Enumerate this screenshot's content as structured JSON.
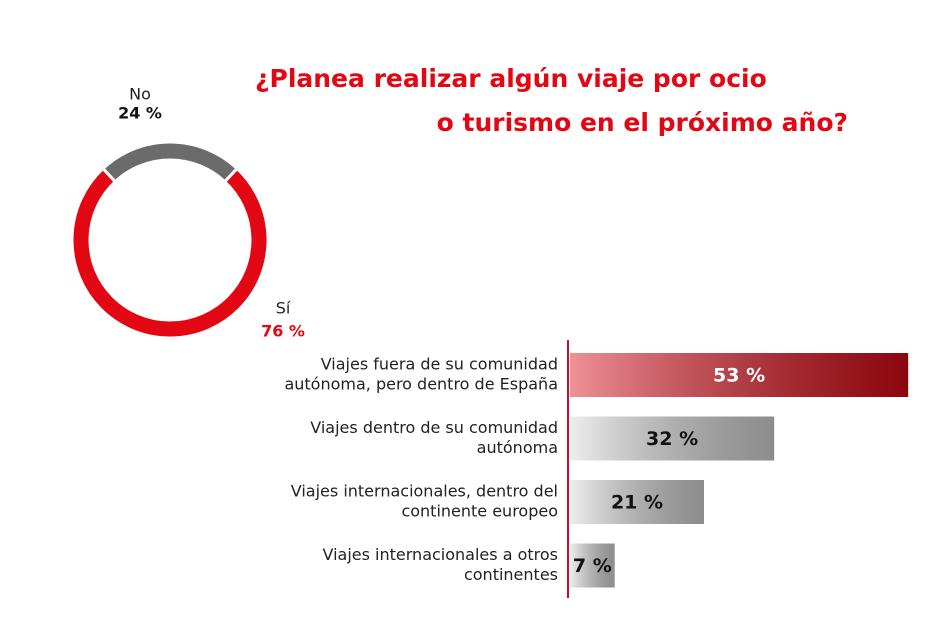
{
  "chart_data": [
    {
      "type": "donut",
      "title": [
        "¿Planea realizar algún viaje por ocio",
        "o turismo en el próximo año?"
      ],
      "categories": [
        "No",
        "Sí"
      ],
      "values": [
        24,
        76
      ],
      "value_labels": [
        "24 %",
        "76 %"
      ],
      "colors": [
        "#6b6b6b",
        "#e30613"
      ]
    },
    {
      "type": "hbar",
      "categories": [
        [
          "Viajes fuera de su comunidad",
          "autónoma, pero dentro de España"
        ],
        [
          "Viajes dentro de su comunidad",
          "autónoma"
        ],
        [
          "Viajes internacionales, dentro del",
          "continente europeo"
        ],
        [
          "Viajes internacionales a otros",
          "continentes"
        ]
      ],
      "values": [
        53,
        32,
        21,
        7
      ],
      "value_labels": [
        "53 %",
        "32 %",
        "21 %",
        "7 %"
      ],
      "colors": [
        "#d90a16",
        "#d8d8d8",
        "#d8d8d8",
        "#d8d8d8"
      ]
    }
  ]
}
